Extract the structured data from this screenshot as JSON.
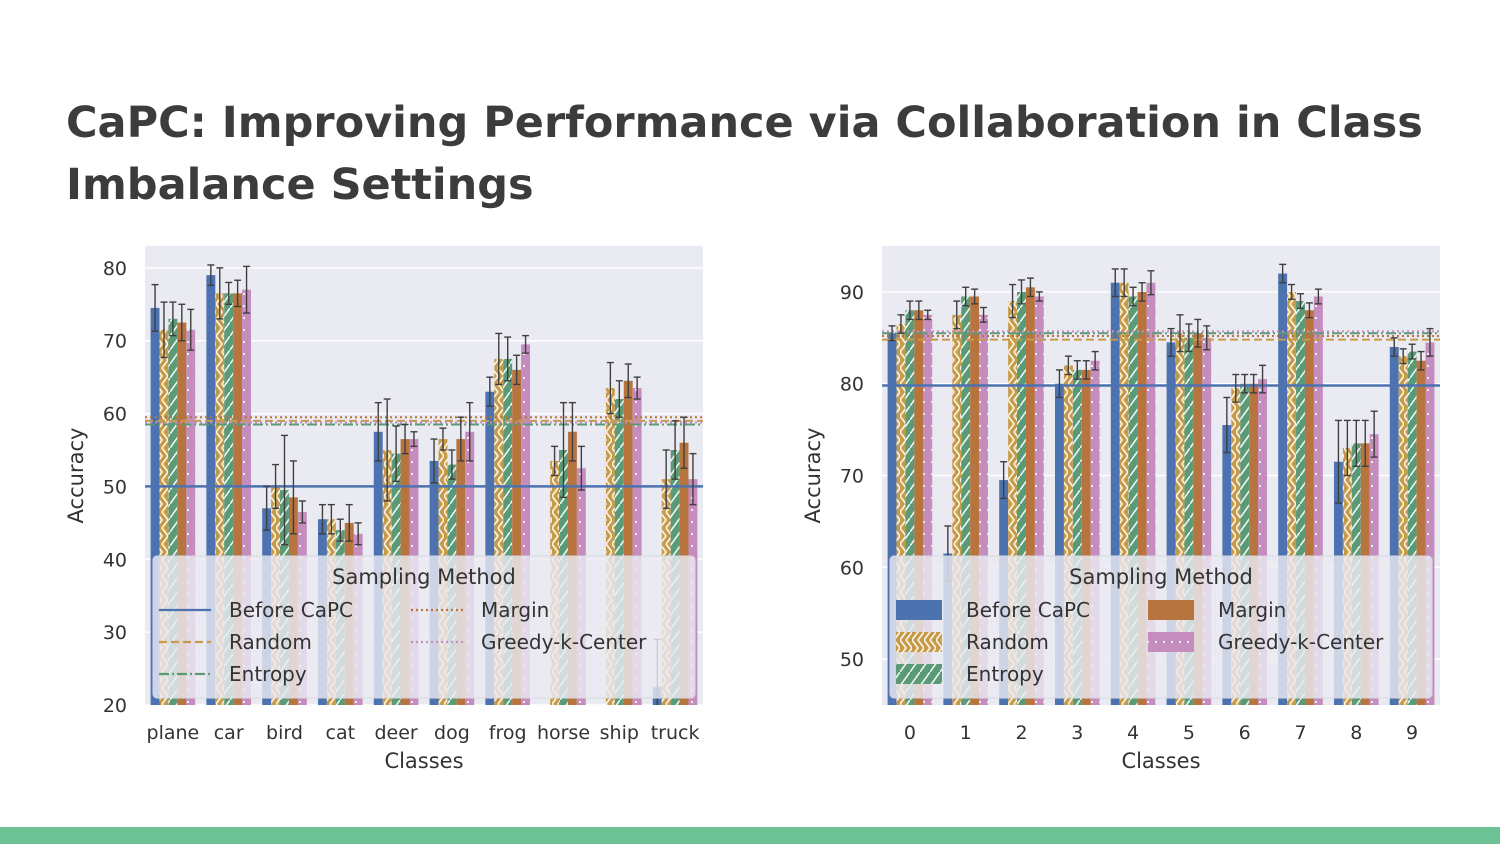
{
  "slide": {
    "title": "CaPC: Improving Performance via Collaboration in Class Imbalance Settings",
    "footer_color": "#6dc396",
    "title_color": "#3c3c3c"
  },
  "colors": {
    "Before CaPC": "#4c72b0",
    "Random": "#c89b49",
    "Entropy": "#5b9a76",
    "Margin": "#b8743f",
    "Greedy-k-Center": "#c58dbd",
    "plot_bg": "#eaeaf2"
  },
  "chart_data": [
    {
      "type": "bar",
      "xlabel": "Classes",
      "ylabel": "Accuracy",
      "ylim": [
        20,
        83
      ],
      "yticks": [
        20,
        30,
        40,
        50,
        60,
        70,
        80
      ],
      "grid": true,
      "legend_title": "Sampling Method",
      "legend_placement": "bottom-center",
      "categories": [
        "plane",
        "car",
        "bird",
        "cat",
        "deer",
        "dog",
        "frog",
        "horse",
        "ship",
        "truck"
      ],
      "series": [
        {
          "name": "Before CaPC",
          "values": [
            74.5,
            79,
            47,
            45.5,
            57.5,
            53.5,
            63,
            17,
            17,
            22.5
          ],
          "err": [
            3.2,
            1.4,
            3,
            2,
            4,
            3,
            2,
            0,
            0,
            6.5
          ]
        },
        {
          "name": "Random",
          "values": [
            71.5,
            76.5,
            50,
            45.5,
            55,
            56.5,
            67.5,
            53.5,
            63.5,
            51
          ],
          "err": [
            3.8,
            3.5,
            3,
            2,
            7,
            1.5,
            3.5,
            2,
            3.5,
            4
          ]
        },
        {
          "name": "Entropy",
          "values": [
            73,
            76.5,
            49.5,
            44,
            54.5,
            53,
            67.5,
            55,
            62,
            55
          ],
          "err": [
            2.3,
            1.5,
            7.5,
            1.5,
            3.8,
            2,
            3,
            6.5,
            2.5,
            4
          ]
        },
        {
          "name": "Margin",
          "values": [
            72.5,
            76.5,
            48.5,
            45,
            56.5,
            56.5,
            66,
            57.5,
            64.5,
            56
          ],
          "err": [
            2.5,
            1.8,
            5,
            2.5,
            2,
            3,
            2,
            4,
            2.3,
            3.5
          ]
        },
        {
          "name": "Greedy-k-Center",
          "values": [
            71.5,
            77,
            46.5,
            43.5,
            56.5,
            57.5,
            69.5,
            52.5,
            63.5,
            51
          ],
          "err": [
            2.8,
            3.2,
            1.5,
            1.5,
            1,
            4,
            1.2,
            3,
            1.5,
            3.5
          ]
        }
      ],
      "reference_lines": [
        {
          "name": "Before CaPC",
          "value": 50,
          "style": "solid"
        },
        {
          "name": "Random",
          "value": 59,
          "style": "dashed"
        },
        {
          "name": "Entropy",
          "value": 58.5,
          "style": "dashdot"
        },
        {
          "name": "Margin",
          "value": 59.5,
          "style": "dotted"
        },
        {
          "name": "Greedy-k-Center",
          "value": 58.8,
          "style": "dotted"
        }
      ]
    },
    {
      "type": "bar",
      "xlabel": "Classes",
      "ylabel": "Accuracy",
      "ylim": [
        45,
        95
      ],
      "yticks": [
        50,
        60,
        70,
        80,
        90
      ],
      "grid": true,
      "legend_title": "Sampling Method",
      "legend_placement": "bottom-center",
      "categories": [
        "0",
        "1",
        "2",
        "3",
        "4",
        "5",
        "6",
        "7",
        "8",
        "9"
      ],
      "series": [
        {
          "name": "Before CaPC",
          "values": [
            85.5,
            61.5,
            69.5,
            80,
            91,
            84.5,
            75.5,
            92,
            71.5,
            84
          ],
          "err": [
            0.8,
            3,
            2,
            1.5,
            1.5,
            1.5,
            3,
            1,
            4.5,
            1
          ]
        },
        {
          "name": "Random",
          "values": [
            86.5,
            87.5,
            89,
            82,
            91,
            85.5,
            79.5,
            90,
            73,
            83
          ],
          "err": [
            1,
            1.5,
            1.8,
            1,
            1.5,
            2,
            1.5,
            0.8,
            3,
            0.8
          ]
        },
        {
          "name": "Entropy",
          "values": [
            88,
            89.5,
            90,
            81.5,
            89.5,
            85,
            80,
            89,
            73.5,
            83.5
          ],
          "err": [
            1,
            1,
            1.3,
            1,
            1,
            1.5,
            1,
            0.8,
            2.5,
            0.8
          ]
        },
        {
          "name": "Margin",
          "values": [
            88,
            89.5,
            90.5,
            81.5,
            90,
            85.5,
            80,
            88,
            73.5,
            82.5
          ],
          "err": [
            1,
            0.8,
            1,
            1,
            1,
            1.5,
            1,
            0.8,
            2.5,
            1
          ]
        },
        {
          "name": "Greedy-k-Center",
          "values": [
            87.5,
            87.5,
            89.5,
            82.5,
            91,
            85,
            80.5,
            89.5,
            74.5,
            84.5
          ],
          "err": [
            0.5,
            0.8,
            0.5,
            1,
            1.3,
            1.3,
            1.5,
            0.8,
            2.5,
            1.5
          ]
        }
      ],
      "reference_lines": [
        {
          "name": "Before CaPC",
          "value": 79.8,
          "style": "solid"
        },
        {
          "name": "Random",
          "value": 84.8,
          "style": "dashed"
        },
        {
          "name": "Entropy",
          "value": 85.5,
          "style": "dashdot"
        },
        {
          "name": "Margin",
          "value": 85.2,
          "style": "dotted"
        },
        {
          "name": "Greedy-k-Center",
          "value": 85.7,
          "style": "dotted"
        }
      ]
    }
  ]
}
